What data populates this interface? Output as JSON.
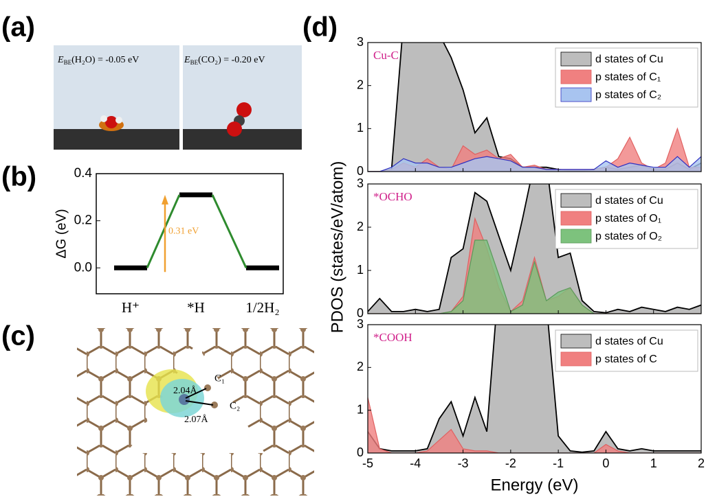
{
  "panel_labels": [
    "(a)",
    "(b)",
    "(c)",
    "(d)"
  ],
  "panel_a": {
    "labels": [
      {
        "symbol": "E",
        "subscript": "BE",
        "text": "(H₂O) = -0.05 eV"
      },
      {
        "symbol": "E",
        "subscript": "BE",
        "text": "(CO₂) = -0.20 eV"
      }
    ]
  },
  "panel_c": {
    "labels": [
      "2.04Å",
      "C₁",
      "C₂",
      "2.07Å"
    ]
  },
  "chart_data": [
    {
      "type": "energy-profile",
      "ylabel": "ΔG (eV)",
      "categories": [
        "H⁺",
        "*H",
        "1/2H₂"
      ],
      "values": [
        0,
        0.31,
        0
      ],
      "level_color": "#000000",
      "connector_color": "#2e8b2e",
      "annotation": "0.31 eV",
      "annotation_color": "#f0a030",
      "ylim": [
        -0.11,
        0.4
      ],
      "yticks": [
        {
          "value": 0,
          "label": "0.0"
        },
        {
          "value": 0.2,
          "label": "0.2"
        },
        {
          "value": 0.4,
          "label": "0.4"
        }
      ]
    },
    {
      "type": "area",
      "label": "Cu-C",
      "label_color": "#d0208a",
      "x": [
        -5,
        -4.75,
        -4.5,
        -4.25,
        -4,
        -3.75,
        -3.5,
        -3.25,
        -3,
        -2.75,
        -2.5,
        -2.25,
        -2,
        -1.75,
        -1.5,
        -1.25,
        -1,
        -0.75,
        -0.5,
        -0.25,
        0,
        0.25,
        0.5,
        0.75,
        1,
        1.25,
        1.5,
        1.75,
        2
      ],
      "series": [
        {
          "name": "d states of Cu",
          "color": "#bdbdbd",
          "line": "#000000",
          "values": [
            0,
            0,
            0.05,
            3.5,
            4,
            3.5,
            3.2,
            2.65,
            1.9,
            0.9,
            1.25,
            0.35,
            0.3,
            0.1,
            0.1,
            0.1,
            0.05,
            0.02,
            0.02,
            0.05,
            0.1,
            0.05,
            0.1,
            0.15,
            0.05,
            0.05,
            0.2,
            0.05,
            0.2
          ]
        },
        {
          "name": "p states of C₁",
          "color": "#f08080",
          "line": "#e06060",
          "values": [
            0,
            0,
            0.05,
            0.2,
            0.1,
            0.3,
            0.1,
            0.05,
            0.6,
            0.4,
            0.5,
            0.3,
            0.4,
            0.1,
            0.15,
            0.05,
            0.05,
            0.05,
            0.05,
            0.05,
            0.1,
            0.3,
            0.8,
            0.2,
            0.05,
            0.2,
            1,
            0.1,
            0.1
          ]
        },
        {
          "name": "p states of C₂",
          "color": "#a8c4f0",
          "line": "#3030c0",
          "values": [
            0,
            0,
            0.1,
            0.3,
            0.2,
            0.2,
            0.1,
            0.1,
            0.2,
            0.3,
            0.35,
            0.3,
            0.25,
            0.1,
            0.1,
            0.05,
            0.05,
            0.05,
            0.05,
            0.05,
            0.25,
            0.1,
            0.2,
            0.15,
            0.1,
            0.1,
            0.35,
            0.1,
            0.35
          ]
        }
      ],
      "xlim": [
        -5,
        2
      ],
      "xticks": [
        -5,
        -4,
        -3,
        -2,
        -1,
        0,
        1,
        2
      ],
      "ylim": [
        0,
        3
      ],
      "yticks": [
        0,
        1,
        2,
        3
      ]
    },
    {
      "type": "area",
      "label": "*OCHO",
      "label_color": "#d0208a",
      "x": [
        -5,
        -4.75,
        -4.5,
        -4.25,
        -4,
        -3.75,
        -3.5,
        -3.25,
        -3,
        -2.75,
        -2.5,
        -2.25,
        -2,
        -1.75,
        -1.5,
        -1.25,
        -1,
        -0.75,
        -0.5,
        -0.25,
        0,
        0.25,
        0.5,
        0.75,
        1,
        1.25,
        1.5,
        1.75,
        2
      ],
      "series": [
        {
          "name": "d states of Cu",
          "color": "#bdbdbd",
          "line": "#000000",
          "values": [
            0.05,
            0.35,
            0.05,
            0.05,
            0.1,
            0.05,
            0.1,
            1.3,
            1.5,
            2.8,
            2.6,
            1.8,
            1,
            2.2,
            3.5,
            3.5,
            1.3,
            1.4,
            0.3,
            0.05,
            0.02,
            0.1,
            0.05,
            0.15,
            0.1,
            0.05,
            0.15,
            0.1,
            0.2
          ]
        },
        {
          "name": "p states of O₁",
          "color": "#f08080",
          "line": "#e06060",
          "values": [
            0,
            0,
            0,
            0,
            0,
            0,
            0,
            0.05,
            0.4,
            2.2,
            1.5,
            0.6,
            0.05,
            0.3,
            1.3,
            0.3,
            0.4,
            0.6,
            0.2,
            0,
            0,
            0,
            0,
            0,
            0,
            0,
            0,
            0,
            0
          ]
        },
        {
          "name": "p states of O₂",
          "color": "#7dc27d",
          "line": "#5a9a5a",
          "values": [
            0,
            0,
            0,
            0,
            0,
            0,
            0,
            0.05,
            0.3,
            1.7,
            1.7,
            0.9,
            0.05,
            0.2,
            1.2,
            0.3,
            0.5,
            0.6,
            0.2,
            0,
            0,
            0,
            0,
            0,
            0,
            0,
            0,
            0,
            0
          ]
        }
      ],
      "xlim": [
        -5,
        2
      ],
      "xticks": [
        -5,
        -4,
        -3,
        -2,
        -1,
        0,
        1,
        2
      ],
      "ylim": [
        0,
        3
      ],
      "yticks": [
        0,
        1,
        2,
        3
      ]
    },
    {
      "type": "area",
      "label": "*COOH",
      "label_color": "#d0208a",
      "ylabel": "PDOS (states/eV/atom)",
      "xlabel": "Energy (eV)",
      "x": [
        -5,
        -4.75,
        -4.5,
        -4.25,
        -4,
        -3.75,
        -3.5,
        -3.25,
        -3,
        -2.75,
        -2.5,
        -2.25,
        -2,
        -1.75,
        -1.5,
        -1.25,
        -1,
        -0.75,
        -0.5,
        -0.25,
        0,
        0.25,
        0.5,
        0.75,
        1,
        1.25,
        1.5,
        1.75,
        2
      ],
      "series": [
        {
          "name": "d states of Cu",
          "color": "#bdbdbd",
          "line": "#000000",
          "values": [
            0.5,
            0.1,
            0.05,
            0.05,
            0.05,
            0.1,
            0.8,
            1.2,
            0.4,
            1.3,
            0.5,
            4,
            4,
            3.5,
            4,
            3.5,
            0.4,
            0.05,
            0.02,
            0.05,
            0.5,
            0.1,
            0.05,
            0.1,
            0.05,
            0.05,
            0.05,
            0.05,
            0.05
          ]
        },
        {
          "name": "p states of C",
          "color": "#f08080",
          "line": "#e06060",
          "values": [
            1.3,
            0.1,
            0,
            0,
            0,
            0.05,
            0.3,
            0.55,
            0.1,
            0.05,
            0.05,
            0,
            0,
            0,
            0,
            0,
            0,
            0,
            0,
            0,
            0.2,
            0.05,
            0,
            0,
            0,
            0,
            0,
            0,
            0
          ]
        }
      ],
      "xlim": [
        -5,
        2
      ],
      "xticks": [
        -5,
        -4,
        -3,
        -2,
        -1,
        0,
        1,
        2
      ],
      "ylim": [
        0,
        3
      ],
      "yticks": [
        0,
        1,
        2,
        3
      ]
    }
  ]
}
